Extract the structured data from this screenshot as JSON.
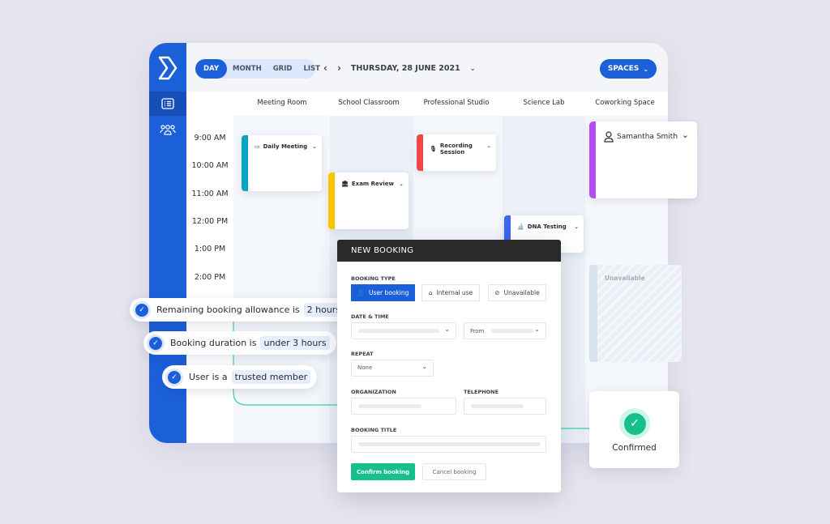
{
  "nav": {
    "views": [
      "DAY",
      "MONTH",
      "GRID",
      "LIST"
    ],
    "active_view": "DAY",
    "date": "THURSDAY, 28 JUNE 2021",
    "spaces_label": "SPACES"
  },
  "columns": [
    "Meeting Room",
    "School Classroom",
    "Professional Studio",
    "Science Lab",
    "Coworking Space"
  ],
  "times": [
    "9:00 AM",
    "10:00 AM",
    "11:00 AM",
    "12:00 PM",
    "1:00 PM",
    "2:00 PM"
  ],
  "events": [
    {
      "title": "Daily Meeting",
      "color": "#0aa3c2",
      "icon": "presentation-icon"
    },
    {
      "title": "Exam Review",
      "color": "#f7c600",
      "icon": "building-icon"
    },
    {
      "title": "Recording Session",
      "color": "#f04848",
      "icon": "microphone-icon"
    },
    {
      "title": "DNA Testing",
      "color": "#3a66f0",
      "icon": "microscope-icon"
    },
    {
      "title": "Samantha Smith",
      "color": "#b44cf0",
      "icon": "user-icon"
    }
  ],
  "unavailable_label": "Unavailable",
  "rules": [
    {
      "text": "Remaining booking allowance is",
      "value": "2 hours"
    },
    {
      "text": "Booking duration is",
      "value": "under 3 hours"
    },
    {
      "text": "User is a",
      "value": "trusted member"
    }
  ],
  "modal": {
    "title": "NEW BOOKING",
    "booking_type_label": "BOOKING TYPE",
    "types": [
      "User booking",
      "Internal use",
      "Unavailable"
    ],
    "date_time_label": "DATE & TIME",
    "from_label": "From",
    "repeat_label": "REPEAT",
    "repeat_value": "None",
    "organization_label": "ORGANIZATION",
    "telephone_label": "TELEPHONE",
    "booking_title_label": "BOOKING TITLE",
    "confirm_label": "Confirm booking",
    "cancel_label": "Cancel booking"
  },
  "confirmed_label": "Confirmed",
  "colors": {
    "primary": "#1b5fd9",
    "success": "#17c08a",
    "dark_header": "#2a2a2a"
  }
}
